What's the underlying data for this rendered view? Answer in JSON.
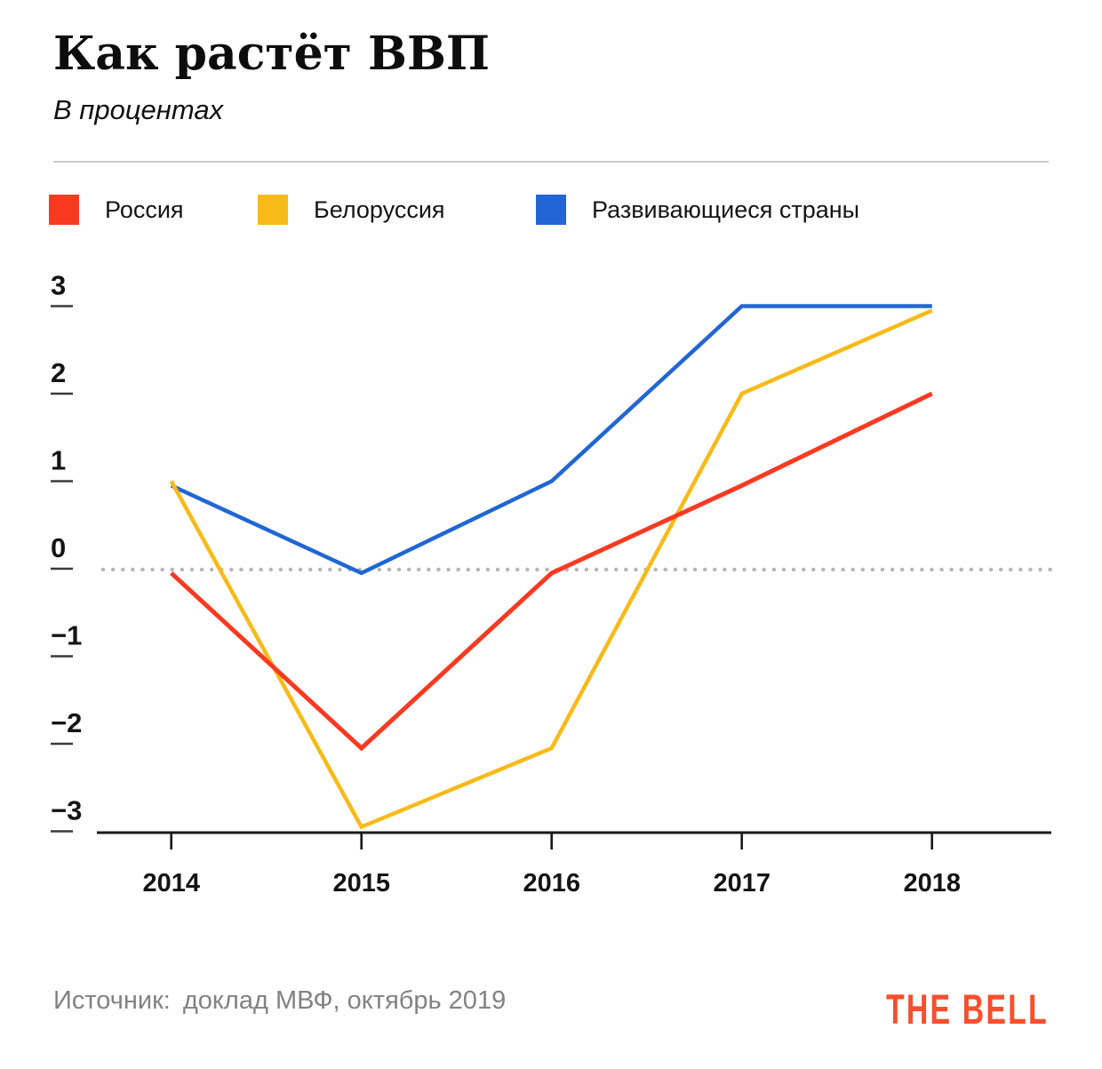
{
  "header": {
    "title": "Как растёт ВВП",
    "subtitle": "В процентах"
  },
  "chart_data": {
    "type": "line",
    "title": "Как растёт ВВП",
    "subtitle": "В процентах",
    "categories": [
      "2014",
      "2015",
      "2016",
      "2017",
      "2018"
    ],
    "series": [
      {
        "name": "Россия",
        "color": "#f93a21",
        "values": [
          -0.05,
          -2.05,
          -0.05,
          0.95,
          2.0
        ]
      },
      {
        "name": "Белоруссия",
        "color": "#f8ba17",
        "values": [
          1.0,
          -2.95,
          -2.05,
          2.0,
          2.95
        ]
      },
      {
        "name": "Развивающиеся страны",
        "color": "#2166d4",
        "values": [
          0.95,
          -0.05,
          1.0,
          3.0,
          3.0
        ]
      }
    ],
    "yticks": [
      3,
      2,
      1,
      0,
      -1,
      -2,
      -3
    ],
    "ylim": [
      -3.3,
      3.2
    ],
    "reference_line": 0,
    "legend_position": "top",
    "grid": "zero-dotted-line-only",
    "xlabel": "",
    "ylabel": ""
  },
  "footer": {
    "source_label": "Источник:",
    "source_text": "доклад МВФ, октябрь 2019",
    "logo_text": "THE BELL"
  },
  "colors": {
    "russia_red": "#f93a21",
    "belarus_yellow": "#f8ba17",
    "emerging_blue": "#2166d4",
    "logo_orange": "#fa4e2c",
    "dotted_reference": "#b6b6b6",
    "axis_black": "#1a1a1a",
    "source_gray": "#828282"
  }
}
